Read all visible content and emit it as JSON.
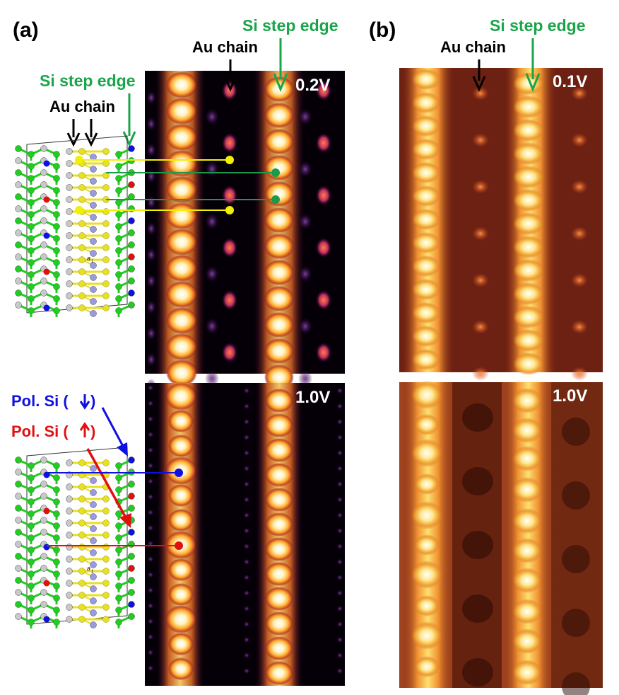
{
  "figure": {
    "panel_a_label": "(a)",
    "panel_b_label": "(b)",
    "label_si_step_edge": "Si step edge",
    "label_au_chain": "Au chain",
    "label_pol_si_down": "Pol. Si (",
    "label_pol_si_up": "Pol. Si (",
    "label_a1": "a",
    "label_a1_sub": "1",
    "voltage_a_top": "0.2V",
    "voltage_a_bottom": "1.0V",
    "voltage_b_top": "0.1V",
    "voltage_b_bottom": "1.0V"
  },
  "colors": {
    "si_step_edge": "#1aa54a",
    "au_chain": "#000000",
    "pol_si_down": "#1010e0",
    "pol_si_up": "#e01010",
    "si_atom_green": "#22cc22",
    "au_atom_yellow": "#e8e020",
    "si_atom_grey": "#c8c8c8",
    "au_atom_lavender": "#9a9ae0",
    "marker_yellow": "#f0f000",
    "marker_green": "#1a9a4a"
  },
  "icons": [
    "arrow-down-icon",
    "arrow-up-icon"
  ]
}
